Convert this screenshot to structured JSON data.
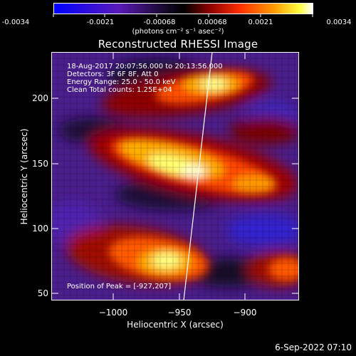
{
  "colorbar": {
    "ticks": [
      "-0.0034",
      "-0.0021",
      "-0.00068",
      "0.00068",
      "0.0021",
      "0.0034"
    ],
    "units": "(photons cm⁻² s⁻¹ asec⁻²)"
  },
  "title": "Reconstructed RHESSI Image",
  "annotations": {
    "time_range": "18-Aug-2017 20:07:56.000 to 20:13:56.000",
    "detectors": "Detectors: 3F 6F 8F, Att 0",
    "energy_range": "Energy Range: 25.0 - 50.0 keV",
    "clean": "Clean    Total counts: 1.25E+04",
    "peak": "Position of Peak = [-927,207]"
  },
  "axes": {
    "xlabel": "Heliocentric X (arcsec)",
    "ylabel": "Heliocentric Y (arcsec)",
    "xticks": [
      "−1000",
      "−950",
      "−900"
    ],
    "yticks": [
      "200",
      "150",
      "100",
      "50"
    ]
  },
  "footer": {
    "date": "6-Sep-2022 07:10"
  },
  "colors": {
    "low": "#0000ff",
    "mid": "#000000",
    "high": "#ffffff"
  }
}
